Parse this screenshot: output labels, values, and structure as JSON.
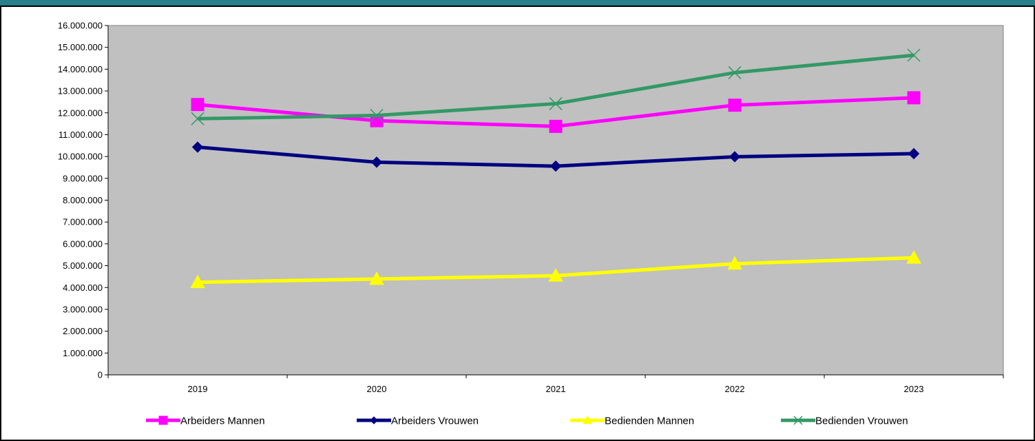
{
  "chart_data": {
    "type": "line",
    "title": "",
    "xlabel": "",
    "ylabel": "",
    "categories": [
      "2019",
      "2020",
      "2021",
      "2022",
      "2023"
    ],
    "ylim": [
      0,
      16000000
    ],
    "yticks": [
      0,
      1000000,
      2000000,
      3000000,
      4000000,
      5000000,
      6000000,
      7000000,
      8000000,
      9000000,
      10000000,
      11000000,
      12000000,
      13000000,
      14000000,
      15000000,
      16000000
    ],
    "ytick_labels": [
      "0",
      "1.000.000",
      "2.000.000",
      "3.000.000",
      "4.000.000",
      "5.000.000",
      "6.000.000",
      "7.000.000",
      "8.000.000",
      "9.000.000",
      "10.000.000",
      "11.000.000",
      "12.000.000",
      "13.000.000",
      "14.000.000",
      "15.000.000",
      "16.000.000"
    ],
    "plot_background": "#c0c0c0",
    "grid": false,
    "legend_position": "bottom",
    "series": [
      {
        "name": "Arbeiders Mannen",
        "color": "#ff00ff",
        "marker": "square",
        "values": [
          12380000,
          11640000,
          11380000,
          12350000,
          12690000
        ]
      },
      {
        "name": "Arbeiders Vrouwen",
        "color": "#000080",
        "marker": "diamond",
        "values": [
          10430000,
          9740000,
          9560000,
          9990000,
          10130000
        ]
      },
      {
        "name": "Bedienden Mannen",
        "color": "#ffff00",
        "marker": "triangle",
        "values": [
          4240000,
          4390000,
          4540000,
          5090000,
          5360000
        ]
      },
      {
        "name": "Bedienden Vrouwen",
        "color": "#339966",
        "marker": "x",
        "values": [
          11730000,
          11880000,
          12420000,
          13840000,
          14640000
        ]
      }
    ]
  }
}
